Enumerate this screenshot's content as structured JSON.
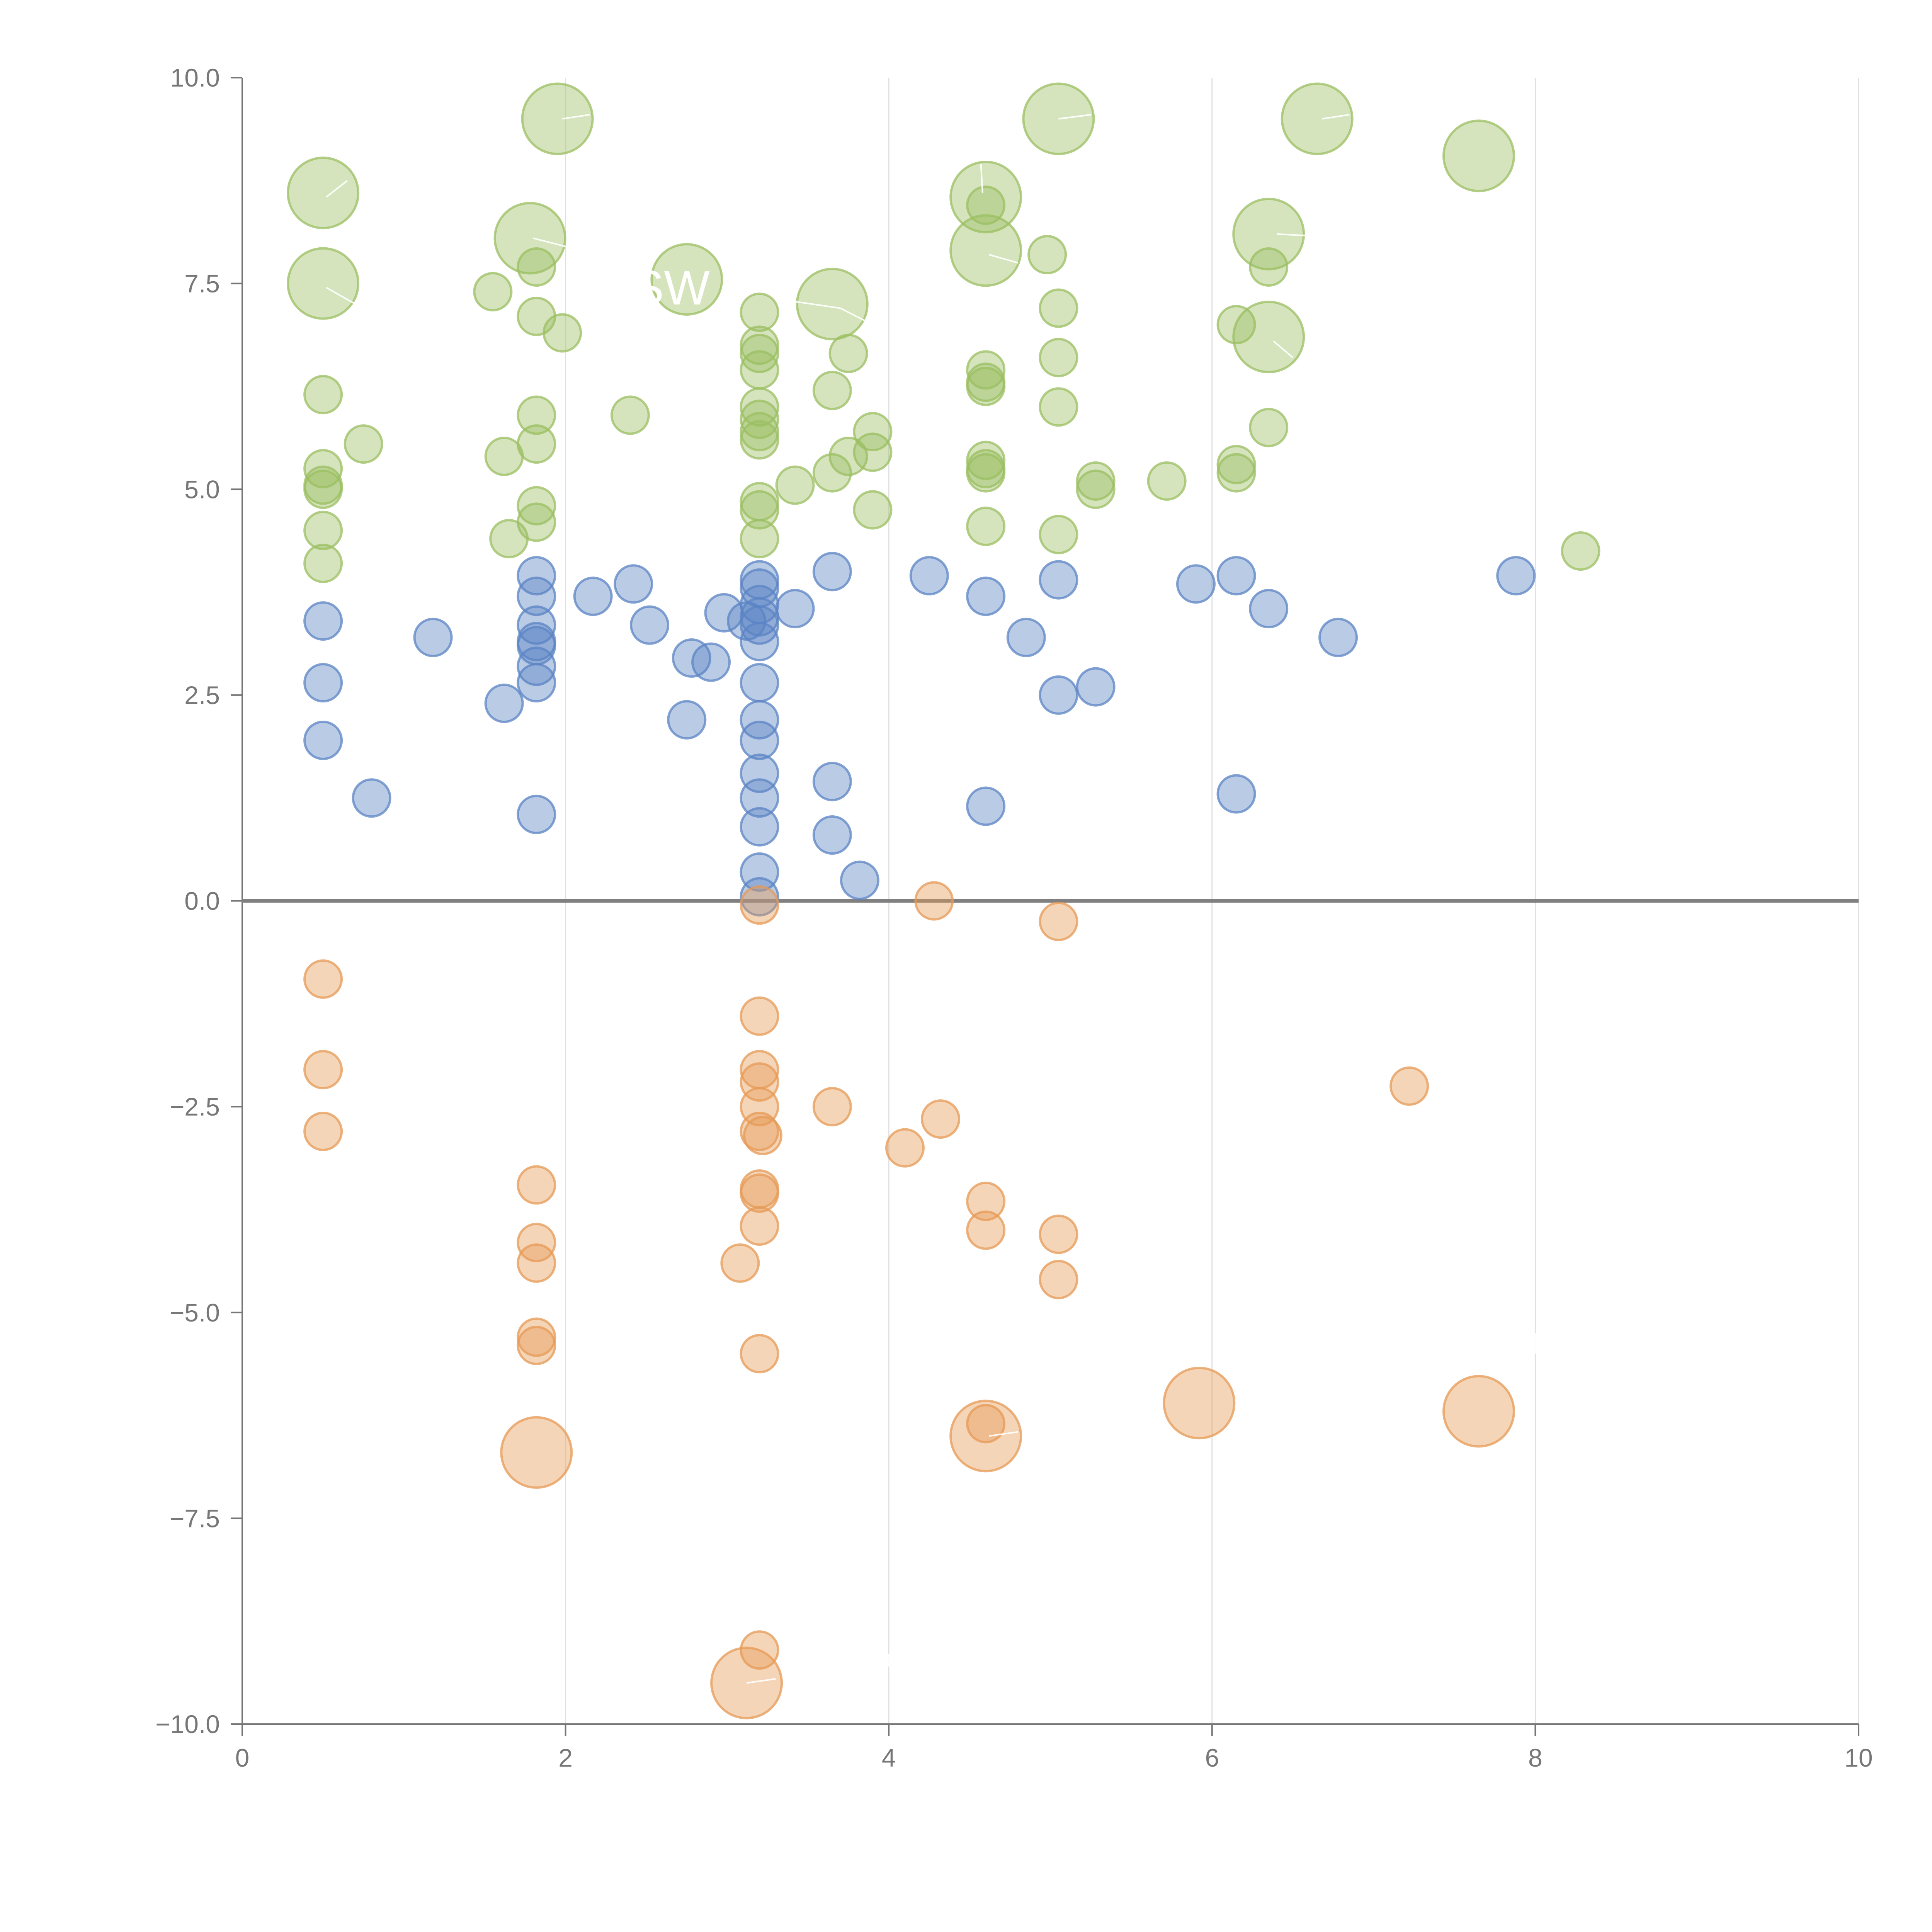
{
  "chart_data": {
    "type": "scatter",
    "title": "",
    "xlabel": "",
    "ylabel": "",
    "xlim": [
      0,
      10
    ],
    "ylim": [
      -10,
      10
    ],
    "x_ticks": [
      0,
      2,
      4,
      6,
      8,
      10
    ],
    "y_ticks": [
      -10,
      -7.5,
      -5,
      -2.5,
      0,
      2.5,
      5,
      7.5,
      10
    ],
    "x_tick_labels": [
      "0",
      "2",
      "4",
      "6",
      "8",
      "10"
    ],
    "y_tick_labels": [
      "−10.0",
      "−7.5",
      "−5.0",
      "−2.5",
      "0.0",
      "2.5",
      "5.0",
      "7.5",
      "10.0"
    ],
    "grid": {
      "vertical": true,
      "horizontal": false,
      "zero_line": true
    },
    "legend": "none",
    "colors": {
      "green": "#9bbf62",
      "blue": "#5b84c4",
      "orange": "#e69a56",
      "grid": "#e0e0e0",
      "axis": "#777777",
      "zero_line": "#808080"
    },
    "series": [
      {
        "color": "green",
        "points": [
          {
            "x": 0.5,
            "y": 8.6,
            "size": "large"
          },
          {
            "x": 0.5,
            "y": 7.5,
            "size": "large"
          },
          {
            "x": 1.95,
            "y": 9.5,
            "size": "large"
          },
          {
            "x": 1.78,
            "y": 8.05,
            "size": "large"
          },
          {
            "x": 2.75,
            "y": 7.55,
            "size": "large"
          },
          {
            "x": 3.65,
            "y": 7.25,
            "size": "large"
          },
          {
            "x": 4.6,
            "y": 8.55,
            "size": "large"
          },
          {
            "x": 4.6,
            "y": 7.9,
            "size": "large"
          },
          {
            "x": 5.05,
            "y": 9.5,
            "size": "large"
          },
          {
            "x": 6.35,
            "y": 8.1,
            "size": "large"
          },
          {
            "x": 6.35,
            "y": 6.85,
            "size": "large"
          },
          {
            "x": 6.65,
            "y": 9.5,
            "size": "large"
          },
          {
            "x": 7.65,
            "y": 9.05,
            "size": "large"
          },
          {
            "x": 0.5,
            "y": 6.15,
            "size": "small"
          },
          {
            "x": 0.75,
            "y": 5.55,
            "size": "small"
          },
          {
            "x": 0.5,
            "y": 5.25,
            "size": "small"
          },
          {
            "x": 0.5,
            "y": 5.05,
            "size": "small"
          },
          {
            "x": 0.5,
            "y": 5.0,
            "size": "small"
          },
          {
            "x": 0.5,
            "y": 4.5,
            "size": "small"
          },
          {
            "x": 0.5,
            "y": 4.1,
            "size": "small"
          },
          {
            "x": 1.55,
            "y": 7.4,
            "size": "small"
          },
          {
            "x": 1.62,
            "y": 5.4,
            "size": "small"
          },
          {
            "x": 1.65,
            "y": 4.4,
            "size": "small"
          },
          {
            "x": 1.82,
            "y": 7.7,
            "size": "small"
          },
          {
            "x": 1.82,
            "y": 7.1,
            "size": "small"
          },
          {
            "x": 1.98,
            "y": 6.9,
            "size": "small"
          },
          {
            "x": 1.82,
            "y": 5.9,
            "size": "small"
          },
          {
            "x": 1.82,
            "y": 5.55,
            "size": "small"
          },
          {
            "x": 1.82,
            "y": 4.8,
            "size": "small"
          },
          {
            "x": 1.82,
            "y": 4.6,
            "size": "small"
          },
          {
            "x": 2.4,
            "y": 5.9,
            "size": "small"
          },
          {
            "x": 3.2,
            "y": 7.15,
            "size": "small"
          },
          {
            "x": 3.2,
            "y": 6.75,
            "size": "small"
          },
          {
            "x": 3.2,
            "y": 6.65,
            "size": "small"
          },
          {
            "x": 3.2,
            "y": 6.45,
            "size": "small"
          },
          {
            "x": 3.2,
            "y": 6.0,
            "size": "small"
          },
          {
            "x": 3.2,
            "y": 5.85,
            "size": "small"
          },
          {
            "x": 3.2,
            "y": 5.7,
            "size": "small"
          },
          {
            "x": 3.2,
            "y": 5.6,
            "size": "small"
          },
          {
            "x": 3.2,
            "y": 4.85,
            "size": "small"
          },
          {
            "x": 3.2,
            "y": 4.75,
            "size": "small"
          },
          {
            "x": 3.2,
            "y": 4.4,
            "size": "small"
          },
          {
            "x": 3.42,
            "y": 5.05,
            "size": "small"
          },
          {
            "x": 3.65,
            "y": 6.2,
            "size": "small"
          },
          {
            "x": 3.65,
            "y": 5.2,
            "size": "small"
          },
          {
            "x": 3.75,
            "y": 6.65,
            "size": "small"
          },
          {
            "x": 3.75,
            "y": 5.4,
            "size": "small"
          },
          {
            "x": 3.9,
            "y": 5.7,
            "size": "small"
          },
          {
            "x": 3.9,
            "y": 5.45,
            "size": "small"
          },
          {
            "x": 3.9,
            "y": 4.75,
            "size": "small"
          },
          {
            "x": 4.6,
            "y": 8.45,
            "size": "small"
          },
          {
            "x": 4.6,
            "y": 6.45,
            "size": "small"
          },
          {
            "x": 4.6,
            "y": 6.3,
            "size": "small"
          },
          {
            "x": 4.6,
            "y": 6.25,
            "size": "small"
          },
          {
            "x": 4.6,
            "y": 5.35,
            "size": "small"
          },
          {
            "x": 4.6,
            "y": 5.25,
            "size": "small"
          },
          {
            "x": 4.6,
            "y": 5.2,
            "size": "small"
          },
          {
            "x": 4.6,
            "y": 4.55,
            "size": "small"
          },
          {
            "x": 4.98,
            "y": 7.85,
            "size": "small"
          },
          {
            "x": 5.05,
            "y": 7.2,
            "size": "small"
          },
          {
            "x": 5.05,
            "y": 6.6,
            "size": "small"
          },
          {
            "x": 5.05,
            "y": 6.0,
            "size": "small"
          },
          {
            "x": 5.05,
            "y": 4.45,
            "size": "small"
          },
          {
            "x": 5.28,
            "y": 5.1,
            "size": "small"
          },
          {
            "x": 5.28,
            "y": 5.0,
            "size": "small"
          },
          {
            "x": 5.72,
            "y": 5.1,
            "size": "small"
          },
          {
            "x": 6.15,
            "y": 7.0,
            "size": "small"
          },
          {
            "x": 6.15,
            "y": 5.3,
            "size": "small"
          },
          {
            "x": 6.15,
            "y": 5.2,
            "size": "small"
          },
          {
            "x": 6.35,
            "y": 7.7,
            "size": "small"
          },
          {
            "x": 6.35,
            "y": 5.75,
            "size": "small"
          },
          {
            "x": 8.28,
            "y": 4.25,
            "size": "small"
          }
        ]
      },
      {
        "color": "blue",
        "points": [
          {
            "x": 0.5,
            "y": 3.4,
            "size": "small"
          },
          {
            "x": 0.5,
            "y": 2.65,
            "size": "small"
          },
          {
            "x": 0.5,
            "y": 1.95,
            "size": "small"
          },
          {
            "x": 0.8,
            "y": 1.25,
            "size": "small"
          },
          {
            "x": 1.18,
            "y": 3.2,
            "size": "small"
          },
          {
            "x": 1.62,
            "y": 2.4,
            "size": "small"
          },
          {
            "x": 1.82,
            "y": 3.95,
            "size": "small"
          },
          {
            "x": 1.82,
            "y": 3.7,
            "size": "small"
          },
          {
            "x": 1.82,
            "y": 3.35,
            "size": "small"
          },
          {
            "x": 1.82,
            "y": 3.15,
            "size": "small"
          },
          {
            "x": 1.82,
            "y": 3.1,
            "size": "small"
          },
          {
            "x": 1.82,
            "y": 2.85,
            "size": "small"
          },
          {
            "x": 1.82,
            "y": 2.65,
            "size": "small"
          },
          {
            "x": 1.82,
            "y": 1.05,
            "size": "small"
          },
          {
            "x": 2.17,
            "y": 3.7,
            "size": "small"
          },
          {
            "x": 2.42,
            "y": 3.85,
            "size": "small"
          },
          {
            "x": 2.52,
            "y": 3.35,
            "size": "small"
          },
          {
            "x": 2.78,
            "y": 2.95,
            "size": "small"
          },
          {
            "x": 2.9,
            "y": 2.9,
            "size": "small"
          },
          {
            "x": 2.75,
            "y": 2.2,
            "size": "small"
          },
          {
            "x": 2.98,
            "y": 3.5,
            "size": "small"
          },
          {
            "x": 3.12,
            "y": 3.4,
            "size": "small"
          },
          {
            "x": 3.2,
            "y": 3.9,
            "size": "small"
          },
          {
            "x": 3.2,
            "y": 3.8,
            "size": "small"
          },
          {
            "x": 3.2,
            "y": 3.6,
            "size": "small"
          },
          {
            "x": 3.2,
            "y": 3.45,
            "size": "small"
          },
          {
            "x": 3.2,
            "y": 3.35,
            "size": "small"
          },
          {
            "x": 3.2,
            "y": 3.15,
            "size": "small"
          },
          {
            "x": 3.2,
            "y": 2.65,
            "size": "small"
          },
          {
            "x": 3.2,
            "y": 2.2,
            "size": "small"
          },
          {
            "x": 3.2,
            "y": 1.95,
            "size": "small"
          },
          {
            "x": 3.2,
            "y": 1.55,
            "size": "small"
          },
          {
            "x": 3.2,
            "y": 1.25,
            "size": "small"
          },
          {
            "x": 3.2,
            "y": 0.9,
            "size": "small"
          },
          {
            "x": 3.2,
            "y": 0.35,
            "size": "small"
          },
          {
            "x": 3.2,
            "y": 0.05,
            "size": "small"
          },
          {
            "x": 3.42,
            "y": 3.55,
            "size": "small"
          },
          {
            "x": 3.65,
            "y": 4.0,
            "size": "small"
          },
          {
            "x": 3.65,
            "y": 1.45,
            "size": "small"
          },
          {
            "x": 3.65,
            "y": 0.8,
            "size": "small"
          },
          {
            "x": 3.82,
            "y": 0.25,
            "size": "small"
          },
          {
            "x": 4.25,
            "y": 3.95,
            "size": "small"
          },
          {
            "x": 4.6,
            "y": 3.7,
            "size": "small"
          },
          {
            "x": 4.6,
            "y": 1.15,
            "size": "small"
          },
          {
            "x": 4.85,
            "y": 3.2,
            "size": "small"
          },
          {
            "x": 5.05,
            "y": 3.9,
            "size": "small"
          },
          {
            "x": 5.05,
            "y": 2.5,
            "size": "small"
          },
          {
            "x": 5.28,
            "y": 2.6,
            "size": "small"
          },
          {
            "x": 5.9,
            "y": 3.85,
            "size": "small"
          },
          {
            "x": 6.15,
            "y": 3.95,
            "size": "small"
          },
          {
            "x": 6.15,
            "y": 1.3,
            "size": "small"
          },
          {
            "x": 6.35,
            "y": 3.55,
            "size": "small"
          },
          {
            "x": 6.78,
            "y": 3.2,
            "size": "small"
          },
          {
            "x": 7.88,
            "y": 3.95,
            "size": "small"
          }
        ]
      },
      {
        "color": "orange",
        "points": [
          {
            "x": 1.82,
            "y": -6.7,
            "size": "large"
          },
          {
            "x": 4.6,
            "y": -6.5,
            "size": "large"
          },
          {
            "x": 5.92,
            "y": -6.1,
            "size": "large"
          },
          {
            "x": 7.65,
            "y": -6.2,
            "size": "large"
          },
          {
            "x": 3.12,
            "y": -9.5,
            "size": "large"
          },
          {
            "x": 0.5,
            "y": -0.95,
            "size": "small"
          },
          {
            "x": 0.5,
            "y": -2.05,
            "size": "small"
          },
          {
            "x": 0.5,
            "y": -2.8,
            "size": "small"
          },
          {
            "x": 1.82,
            "y": -3.45,
            "size": "small"
          },
          {
            "x": 1.82,
            "y": -4.15,
            "size": "small"
          },
          {
            "x": 1.82,
            "y": -4.4,
            "size": "small"
          },
          {
            "x": 1.82,
            "y": -5.3,
            "size": "small"
          },
          {
            "x": 1.82,
            "y": -5.4,
            "size": "small"
          },
          {
            "x": 3.08,
            "y": -4.4,
            "size": "small"
          },
          {
            "x": 3.2,
            "y": -0.05,
            "size": "small"
          },
          {
            "x": 3.2,
            "y": -1.4,
            "size": "small"
          },
          {
            "x": 3.2,
            "y": -2.05,
            "size": "small"
          },
          {
            "x": 3.2,
            "y": -2.2,
            "size": "small"
          },
          {
            "x": 3.2,
            "y": -2.5,
            "size": "small"
          },
          {
            "x": 3.2,
            "y": -2.8,
            "size": "small"
          },
          {
            "x": 3.22,
            "y": -2.85,
            "size": "small"
          },
          {
            "x": 3.2,
            "y": -3.5,
            "size": "small"
          },
          {
            "x": 3.2,
            "y": -3.55,
            "size": "small"
          },
          {
            "x": 3.2,
            "y": -3.95,
            "size": "small"
          },
          {
            "x": 3.2,
            "y": -5.5,
            "size": "small"
          },
          {
            "x": 3.2,
            "y": -9.1,
            "size": "small"
          },
          {
            "x": 3.65,
            "y": -2.5,
            "size": "small"
          },
          {
            "x": 4.1,
            "y": -3.0,
            "size": "small"
          },
          {
            "x": 4.28,
            "y": 0.0,
            "size": "small"
          },
          {
            "x": 4.32,
            "y": -2.65,
            "size": "small"
          },
          {
            "x": 4.6,
            "y": -3.65,
            "size": "small"
          },
          {
            "x": 4.6,
            "y": -4.0,
            "size": "small"
          },
          {
            "x": 4.6,
            "y": -6.35,
            "size": "small"
          },
          {
            "x": 5.05,
            "y": -0.25,
            "size": "small"
          },
          {
            "x": 5.05,
            "y": -4.05,
            "size": "small"
          },
          {
            "x": 5.05,
            "y": -4.6,
            "size": "small"
          },
          {
            "x": 7.22,
            "y": -2.25,
            "size": "small"
          }
        ]
      }
    ],
    "annotations": [
      {
        "text": "BSW",
        "x": 2.55,
        "y": 7.45
      }
    ],
    "leader_lines": [
      {
        "x1": 0.52,
        "y1": 8.55,
        "x2": 0.65,
        "y2": 8.75
      },
      {
        "x1": 0.52,
        "y1": 7.45,
        "x2": 0.7,
        "y2": 7.25
      },
      {
        "x1": 1.98,
        "y1": 9.5,
        "x2": 2.15,
        "y2": 9.55
      },
      {
        "x1": 1.8,
        "y1": 8.05,
        "x2": 2.0,
        "y2": 7.95
      },
      {
        "x1": 3.35,
        "y1": 7.3,
        "x2": 3.7,
        "y2": 7.2
      },
      {
        "x1": 3.7,
        "y1": 7.2,
        "x2": 3.85,
        "y2": 7.05
      },
      {
        "x1": 4.58,
        "y1": 8.6,
        "x2": 4.57,
        "y2": 8.95
      },
      {
        "x1": 4.62,
        "y1": 7.85,
        "x2": 4.8,
        "y2": 7.75
      },
      {
        "x1": 5.05,
        "y1": 9.5,
        "x2": 5.25,
        "y2": 9.55
      },
      {
        "x1": 6.4,
        "y1": 8.1,
        "x2": 6.6,
        "y2": 8.08
      },
      {
        "x1": 6.38,
        "y1": 6.8,
        "x2": 6.5,
        "y2": 6.6
      },
      {
        "x1": 6.68,
        "y1": 9.5,
        "x2": 6.85,
        "y2": 9.55
      },
      {
        "x1": 4.62,
        "y1": -6.5,
        "x2": 4.8,
        "y2": -6.45
      },
      {
        "x1": 3.12,
        "y1": -9.5,
        "x2": 3.3,
        "y2": -9.45
      },
      {
        "x1": 8.0,
        "y1": -5.25,
        "x2": 8.0,
        "y2": -5.5
      },
      {
        "x1": 4.0,
        "y1": -9.15,
        "x2": 4.0,
        "y2": -9.3
      }
    ]
  }
}
